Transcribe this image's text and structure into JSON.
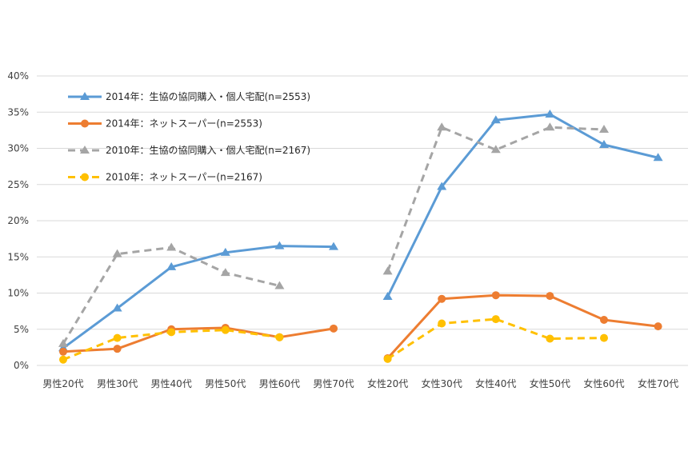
{
  "chart_data": {
    "type": "line",
    "categories": [
      "男性20代",
      "男性30代",
      "男性40代",
      "男性50代",
      "男性60代",
      "男性70代",
      "女性20代",
      "女性30代",
      "女性40代",
      "女性50代",
      "女性60代",
      "女性70代"
    ],
    "y_ticks": [
      "0%",
      "5%",
      "10%",
      "15%",
      "20%",
      "25%",
      "30%",
      "35%",
      "40%"
    ],
    "ylim": [
      0,
      40
    ],
    "grid": true,
    "legend_position": "top-left",
    "series": [
      {
        "name": "2014年：生協の協同購入・個人宅配(n=2553)",
        "color": "#5b9bd5",
        "dash": "solid",
        "marker": "triangle",
        "values": [
          2.4,
          7.9,
          13.6,
          15.6,
          16.5,
          16.4,
          9.5,
          24.7,
          33.9,
          34.7,
          30.5,
          28.7
        ]
      },
      {
        "name": "2014年：ネットスーパー(n=2553)",
        "color": "#ed7d31",
        "dash": "solid",
        "marker": "circle",
        "values": [
          1.9,
          2.3,
          5.0,
          5.2,
          3.9,
          5.1,
          1.0,
          9.2,
          9.7,
          9.6,
          6.3,
          5.4
        ]
      },
      {
        "name": "2010年：生協の協同購入・個人宅配(n=2167)",
        "color": "#a5a5a5",
        "dash": "dashed",
        "marker": "triangle",
        "values": [
          3.0,
          15.4,
          16.3,
          12.8,
          11.0,
          null,
          13.0,
          32.9,
          29.8,
          32.9,
          32.6,
          null
        ]
      },
      {
        "name": "2010年：ネットスーパー(n=2167)",
        "color": "#ffc000",
        "dash": "dashed",
        "marker": "circle",
        "values": [
          0.8,
          3.8,
          4.6,
          4.9,
          3.9,
          null,
          0.9,
          5.8,
          6.4,
          3.7,
          3.8,
          null
        ]
      }
    ]
  }
}
